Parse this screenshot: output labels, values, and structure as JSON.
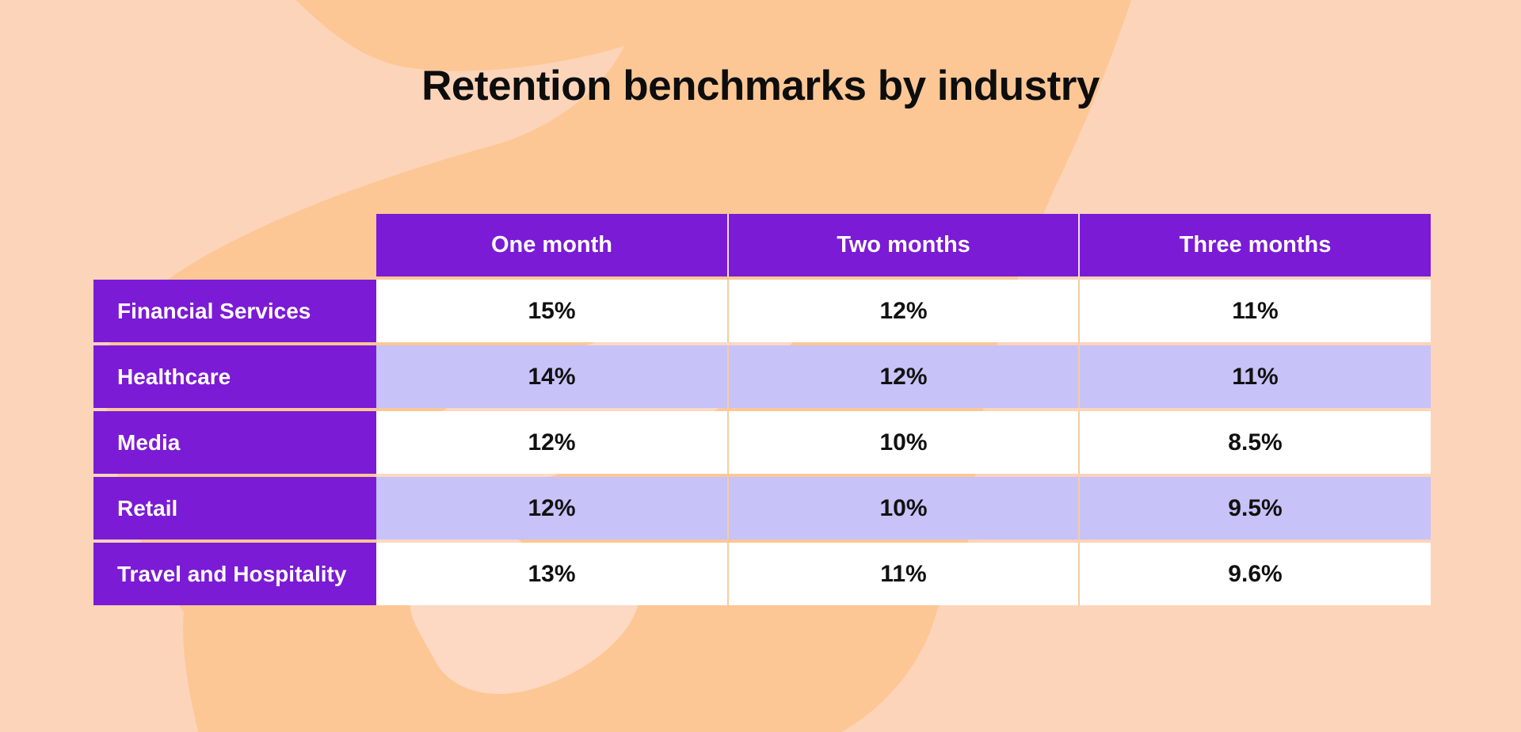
{
  "title": "Retention benchmarks by industry",
  "table": {
    "columns": [
      "One month",
      "Two months",
      "Three months"
    ],
    "rows": [
      {
        "label": "Financial Services",
        "values": [
          "15%",
          "12%",
          "11%"
        ]
      },
      {
        "label": "Healthcare",
        "values": [
          "14%",
          "12%",
          "11%"
        ]
      },
      {
        "label": "Media",
        "values": [
          "12%",
          "10%",
          "8.5%"
        ]
      },
      {
        "label": "Retail",
        "values": [
          "12%",
          "10%",
          "9.5%"
        ]
      },
      {
        "label": "Travel and Hospitality",
        "values": [
          "13%",
          "11%",
          "9.6%"
        ]
      }
    ]
  },
  "chart_data": {
    "type": "table",
    "title": "Retention benchmarks by industry",
    "columns": [
      "One month",
      "Two months",
      "Three months"
    ],
    "row_labels": [
      "Financial Services",
      "Healthcare",
      "Media",
      "Retail",
      "Travel and Hospitality"
    ],
    "values_percent": [
      [
        15,
        12,
        11
      ],
      [
        14,
        12,
        11
      ],
      [
        12,
        10,
        8.5
      ],
      [
        12,
        10,
        9.5
      ],
      [
        13,
        11,
        9.6
      ]
    ],
    "unit": "%"
  },
  "colors": {
    "background_light": "#fcd4b9",
    "background_dark": "#fcc795",
    "background_counter": "#fdd8c3",
    "header_purple": "#7b1bd5",
    "row_lavender": "#c7c2f8",
    "row_white": "#ffffff",
    "divider_peach": "#f8cba1",
    "title_text": "#0d0d0d",
    "value_text": "#111111"
  }
}
